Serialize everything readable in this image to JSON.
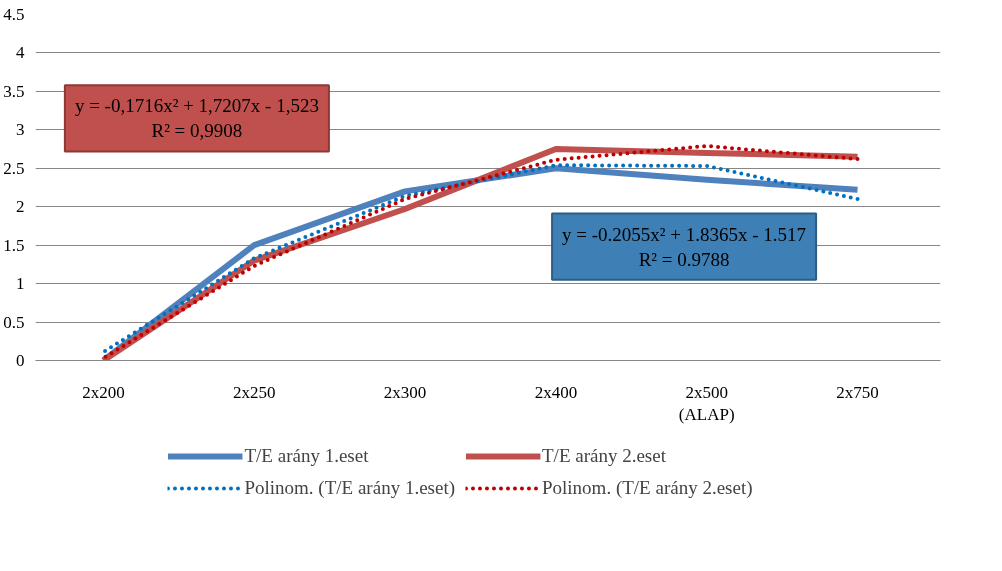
{
  "chart_data": {
    "type": "line",
    "categories": [
      "2x200",
      "2x250",
      "2x300",
      "2x400",
      "2x500\n(ALAP)",
      "2x750"
    ],
    "series": [
      {
        "name": "T/E arány 1.eset",
        "color": "#4f81bd",
        "values": [
          0,
          1.5,
          2.2,
          2.5,
          2.35,
          2.22
        ],
        "line_style": "solid"
      },
      {
        "name": "T/E arány 2.eset",
        "color": "#c0504d",
        "values": [
          0,
          1.3,
          1.97,
          2.75,
          2.7,
          2.65
        ],
        "line_style": "solid"
      },
      {
        "name": "Polinom. (T/E arány 1.eset)",
        "color": "#0070c0",
        "values": [
          0.11,
          1.33,
          2.14,
          2.54,
          2.53,
          2.1
        ],
        "line_style": "dotted"
      },
      {
        "name": "Polinom. (T/E arány 2.eset)",
        "color": "#c00000",
        "values": [
          0.03,
          1.23,
          2.1,
          2.61,
          2.79,
          2.62
        ],
        "line_style": "dotted"
      }
    ],
    "ylim": [
      0,
      4.5
    ],
    "yticks": [
      0,
      {
        "value": 0.5,
        "label": "0.5"
      },
      1,
      {
        "value": 1.5,
        "label": "1.5"
      },
      2,
      {
        "value": 2.5,
        "label": "2.5"
      },
      3,
      {
        "value": 3.5,
        "label": "3.5"
      },
      4,
      {
        "value": 4.5,
        "label": "4.5"
      }
    ],
    "grid": "y",
    "legend": "bottom",
    "marker": "none",
    "annotations": [
      "y = -0,1716x² + 1,7207x - 1,523\nR² = 0,9908",
      "y = -0.2055x² + 1.8365x - 1.517\nR² = 0.9788"
    ]
  }
}
